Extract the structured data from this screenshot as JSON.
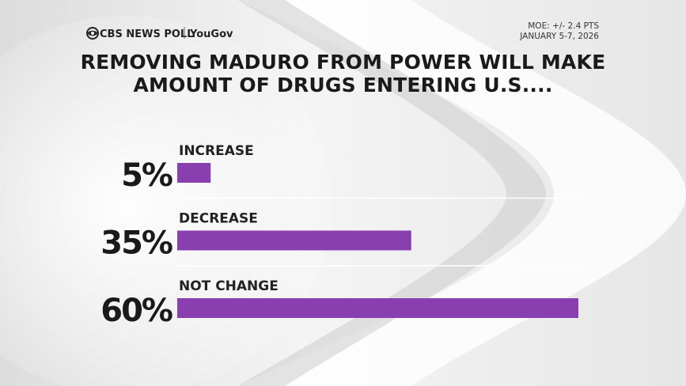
{
  "chart_data": {
    "type": "bar",
    "orientation": "horizontal",
    "brand": "CBS NEWS POLL",
    "partner": "YouGov",
    "notes": [
      "MOE: +/- 2.4 PTS",
      "JANUARY 5-7, 2026"
    ],
    "title": "REMOVING MADURO FROM POWER WILL MAKE AMOUNT OF DRUGS ENTERING U.S....",
    "categories": [
      "INCREASE",
      "DECREASE",
      "NOT CHANGE"
    ],
    "values": [
      5,
      35,
      60
    ],
    "value_labels": [
      "5%",
      "35%",
      "60%"
    ],
    "color": "#8a3fb0",
    "xlim": [
      0,
      60
    ]
  }
}
